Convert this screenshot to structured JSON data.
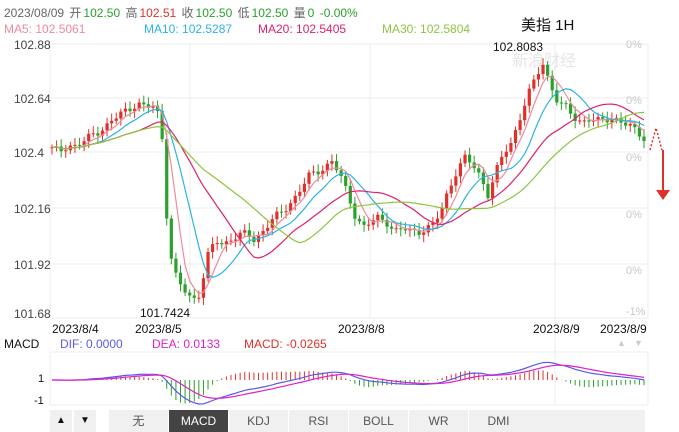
{
  "header": {
    "date": "2023/08/09",
    "open_label": "开",
    "open": "102.50",
    "high_label": "高",
    "high": "102.51",
    "close_label": "收",
    "close": "102.50",
    "low_label": "低",
    "low": "102.50",
    "vol_label": "量",
    "vol": "0",
    "change": "-0.00%"
  },
  "ma": {
    "ma5": "MA5: 102.5061",
    "ma10": "MA10: 102.5287",
    "ma20": "MA20: 102.5405",
    "ma30": "MA30: 102.5804"
  },
  "title": "美指 1H",
  "watermark": "新浪财经",
  "price_axis": [
    "102.88",
    "102.64",
    "102.4",
    "102.16",
    "101.92",
    "101.68"
  ],
  "pct_axis": [
    "0%",
    "0%",
    "0%",
    "0%",
    "0%",
    "-1%"
  ],
  "time_axis": [
    "2023/8/4",
    "2023/8/5",
    "2023/8/8",
    "2023/8/9",
    "2023/8/9"
  ],
  "annotations": {
    "max": "102.8083",
    "min": "101.7424"
  },
  "macd": {
    "label": "MACD",
    "dif": "DIF: 0.0000",
    "dea": "DEA: 0.0133",
    "macd": "MACD: -0.0265",
    "axis_top": "1",
    "axis_bottom": "-1"
  },
  "tabs": [
    "无",
    "MACD",
    "KDJ",
    "RSI",
    "BOLL",
    "WR",
    "DMI"
  ],
  "active_tab": "MACD",
  "colors": {
    "up": "#e0302a",
    "down": "#2aa12a",
    "ma5": "#f08a9c",
    "ma10": "#2bb3e6",
    "ma20": "#e0206b",
    "ma30": "#8cc63f",
    "dif": "#5a5ae6",
    "dea": "#e020c8"
  },
  "chart_data": {
    "type": "candlestick",
    "ylim": [
      101.68,
      102.88
    ],
    "max_point": 102.8083,
    "min_point": 101.7424,
    "close_path": [
      102.42,
      102.41,
      102.44,
      102.43,
      102.45,
      102.48,
      102.5,
      102.52,
      102.55,
      102.58,
      102.6,
      102.62,
      102.6,
      102.61,
      102.55,
      101.98,
      101.85,
      101.8,
      101.76,
      101.79,
      101.95,
      102.02,
      102.0,
      102.03,
      102.04,
      102.05,
      102.02,
      102.06,
      102.1,
      102.13,
      102.16,
      102.2,
      102.25,
      102.3,
      102.32,
      102.34,
      102.37,
      102.3,
      102.22,
      102.12,
      102.08,
      102.1,
      102.12,
      102.1,
      102.06,
      102.07,
      102.06,
      102.06,
      102.07,
      102.09,
      102.15,
      102.25,
      102.33,
      102.38,
      102.35,
      102.3,
      102.22,
      102.32,
      102.4,
      102.45,
      102.55,
      102.65,
      102.72,
      102.8,
      102.7,
      102.62,
      102.6,
      102.56,
      102.54,
      102.55,
      102.54,
      102.55,
      102.56,
      102.54,
      102.52,
      102.5,
      102.47
    ]
  }
}
